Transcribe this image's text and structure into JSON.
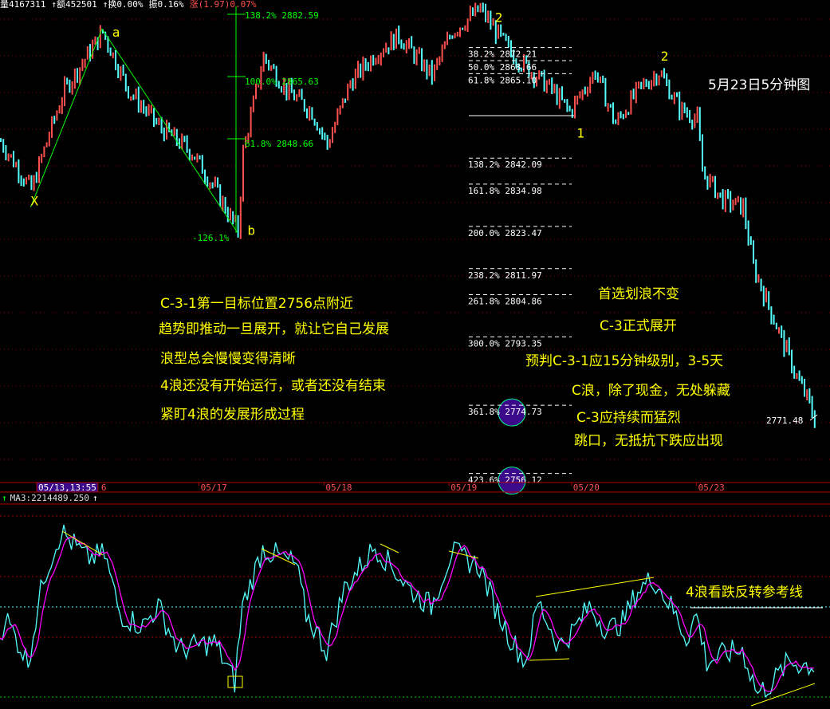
{
  "header": {
    "volume": "量4167311",
    "amount": "↑额452501",
    "turnover": "↑换0.00%",
    "amplitude": "振0.16%",
    "change": "涨(1.97)0.07%"
  },
  "chart_data": {
    "type": "candlestick",
    "title": "5月23日5分钟图",
    "x_unit": "5-minute bar index",
    "date_ticks": [
      {
        "bar": 78,
        "label": "05/17"
      },
      {
        "bar": 127,
        "label": "05/18"
      },
      {
        "bar": 176,
        "label": "05/19"
      },
      {
        "bar": 224,
        "label": "05/20"
      },
      {
        "bar": 273,
        "label": "05/23"
      }
    ],
    "cursor_label": "05/13,13:55",
    "cursor_suffix": "6",
    "price_path": [
      [
        0,
        2848
      ],
      [
        12,
        2834.7
      ],
      [
        19,
        2850
      ],
      [
        25,
        2862
      ],
      [
        40,
        2877.8
      ],
      [
        50,
        2862
      ],
      [
        62,
        2852
      ],
      [
        75,
        2845
      ],
      [
        84,
        2835
      ],
      [
        93,
        2823.4
      ],
      [
        95,
        2845
      ],
      [
        103,
        2871
      ],
      [
        112,
        2862
      ],
      [
        122,
        2856
      ],
      [
        128,
        2847
      ],
      [
        137,
        2864
      ],
      [
        147,
        2872
      ],
      [
        156,
        2876.7
      ],
      [
        169,
        2865.8
      ],
      [
        177,
        2878
      ],
      [
        188,
        2884
      ],
      [
        200,
        2872
      ],
      [
        216,
        2862
      ],
      [
        223,
        2856
      ],
      [
        233,
        2867
      ],
      [
        241,
        2852.8
      ],
      [
        250,
        2862
      ],
      [
        258,
        2867
      ],
      [
        266,
        2857
      ],
      [
        273,
        2854
      ],
      [
        275,
        2839.7
      ],
      [
        283,
        2832
      ],
      [
        291,
        2830
      ],
      [
        295,
        2813.7
      ],
      [
        303,
        2799.5
      ],
      [
        313,
        2782
      ],
      [
        316,
        2778
      ],
      [
        319,
        2772
      ]
    ],
    "colors": {
      "up": "#ff5050",
      "down": "#54ffff",
      "grid": "#8b0000"
    },
    "wave_labels": [
      {
        "text": "X",
        "bar": 12,
        "price": 2830.5
      },
      {
        "text": "a",
        "bar": 44,
        "price": 2876.5
      },
      {
        "text": "b",
        "bar": 97,
        "price": 2822.5
      },
      {
        "text": "2",
        "bar": 194,
        "price": 2880.5
      },
      {
        "text": "1",
        "bar": 226,
        "price": 2849
      },
      {
        "text": "2",
        "bar": 259,
        "price": 2870
      }
    ],
    "left_fib": [
      {
        "label": "138.2% 2882.59",
        "price": 2882.59
      },
      {
        "label": "100.0% 2865.63",
        "price": 2865.63
      },
      {
        "label": "61.8% 2848.66",
        "price": 2848.66
      }
    ],
    "left_fib_low_label": "-126.1%",
    "right_fib": [
      {
        "label": "38.2% 2872.21",
        "price": 2872.21
      },
      {
        "label": "50.0% 2868.66",
        "price": 2868.66
      },
      {
        "label": "61.8% 2865.10",
        "price": 2865.1
      },
      {
        "label": "138.2% 2842.09",
        "price": 2842.09
      },
      {
        "label": "161.8% 2834.98",
        "price": 2834.98
      },
      {
        "label": "200.0% 2823.47",
        "price": 2823.47
      },
      {
        "label": "238.2% 2811.97",
        "price": 2811.97
      },
      {
        "label": "261.8% 2804.86",
        "price": 2804.86
      },
      {
        "label": "300.0% 2793.35",
        "price": 2793.35
      },
      {
        "label": "361.8% 2774.73",
        "price": 2774.73,
        "highlight": true
      },
      {
        "label": "423.6% 2756.12",
        "price": 2756.12,
        "highlight": true
      }
    ],
    "last_price_label": "2771.48",
    "notes_left": [
      "C-3-1第一目标位置2756点附近",
      "趋势即推动一旦展开，就让它自己发展",
      "浪型总会慢慢变得清晰",
      "4浪还没有开始运行，或者还没有结束",
      "紧盯4浪的发展形成过程"
    ],
    "notes_right": [
      "首选划浪不变",
      "C-3正式展开",
      "预判C-3-1应15分钟级别，3-5天",
      "C浪，除了现金，无处躲藏",
      "C-3应持续而猛烈",
      "跳口，无抵抗下跌应出现"
    ],
    "indicator": {
      "label": "MA3:2214489.250",
      "note": "4浪看跌反转参考线",
      "series_color": "#54ffff",
      "ma_color": "#ff00ff",
      "path": [
        [
          0,
          32.6
        ],
        [
          2,
          44.5
        ],
        [
          11,
          19.4
        ],
        [
          17,
          65.6
        ],
        [
          24,
          91.6
        ],
        [
          34,
          76.6
        ],
        [
          41,
          78.9
        ],
        [
          47,
          45.8
        ],
        [
          56,
          39.2
        ],
        [
          62,
          50.2
        ],
        [
          70,
          26
        ],
        [
          84,
          30.4
        ],
        [
          92,
          8.4
        ],
        [
          95,
          50.2
        ],
        [
          103,
          81.9
        ],
        [
          116,
          73.1
        ],
        [
          120,
          45.8
        ],
        [
          128,
          26
        ],
        [
          135,
          59.9
        ],
        [
          147,
          83.3
        ],
        [
          156,
          67.8
        ],
        [
          161,
          59
        ],
        [
          169,
          50.2
        ],
        [
          177,
          80.2
        ],
        [
          188,
          72.2
        ],
        [
          194,
          50.2
        ],
        [
          200,
          32.6
        ],
        [
          206,
          19.4
        ],
        [
          211,
          52.4
        ],
        [
          219,
          28.2
        ],
        [
          225,
          37
        ],
        [
          231,
          50.2
        ],
        [
          238,
          37
        ],
        [
          244,
          41.4
        ],
        [
          250,
          59
        ],
        [
          256,
          65.6
        ],
        [
          263,
          50.2
        ],
        [
          269,
          32.6
        ],
        [
          273,
          45.8
        ],
        [
          277,
          19.4
        ],
        [
          284,
          23.8
        ],
        [
          291,
          26
        ],
        [
          297,
          1.8
        ],
        [
          303,
          8.4
        ],
        [
          309,
          19.4
        ],
        [
          319,
          17.2
        ]
      ]
    }
  }
}
